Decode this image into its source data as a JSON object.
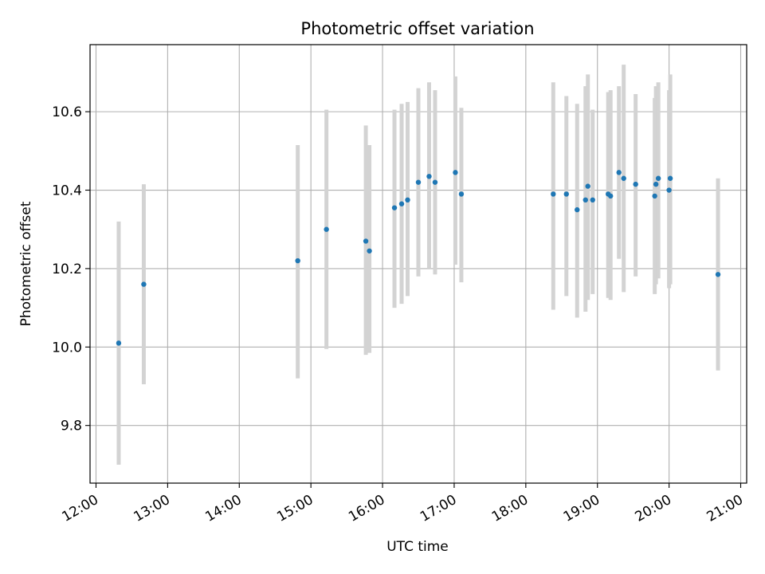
{
  "chart_data": {
    "type": "scatter",
    "title": "Photometric offset variation",
    "xlabel": "UTC time",
    "ylabel": "Photometric offset",
    "xlim": [
      "11:55",
      "21:05"
    ],
    "ylim": [
      9.653,
      10.771
    ],
    "x_ticks": [
      "12:00",
      "13:00",
      "14:00",
      "15:00",
      "16:00",
      "17:00",
      "18:00",
      "19:00",
      "20:00",
      "21:00"
    ],
    "y_ticks": [
      9.8,
      10.0,
      10.2,
      10.4,
      10.6
    ],
    "grid": true,
    "point_color": "#1f77b4",
    "errorbar_color": "#d3d3d3",
    "points": [
      {
        "t": "12:19",
        "y": 10.01,
        "lo": 9.7,
        "hi": 10.32
      },
      {
        "t": "12:40",
        "y": 10.16,
        "lo": 9.905,
        "hi": 10.415
      },
      {
        "t": "14:49",
        "y": 10.22,
        "lo": 9.92,
        "hi": 10.515
      },
      {
        "t": "15:13",
        "y": 10.3,
        "lo": 9.995,
        "hi": 10.605
      },
      {
        "t": "15:46",
        "y": 10.27,
        "lo": 9.98,
        "hi": 10.565
      },
      {
        "t": "15:49",
        "y": 10.245,
        "lo": 9.985,
        "hi": 10.515
      },
      {
        "t": "16:10",
        "y": 10.355,
        "lo": 10.1,
        "hi": 10.605
      },
      {
        "t": "16:16",
        "y": 10.365,
        "lo": 10.11,
        "hi": 10.62
      },
      {
        "t": "16:21",
        "y": 10.375,
        "lo": 10.13,
        "hi": 10.625
      },
      {
        "t": "16:30",
        "y": 10.42,
        "lo": 10.18,
        "hi": 10.66
      },
      {
        "t": "16:39",
        "y": 10.435,
        "lo": 10.2,
        "hi": 10.675
      },
      {
        "t": "16:44",
        "y": 10.42,
        "lo": 10.185,
        "hi": 10.655
      },
      {
        "t": "17:01",
        "y": 10.445,
        "lo": 10.21,
        "hi": 10.69
      },
      {
        "t": "17:06",
        "y": 10.39,
        "lo": 10.165,
        "hi": 10.61
      },
      {
        "t": "18:23",
        "y": 10.39,
        "lo": 10.095,
        "hi": 10.675
      },
      {
        "t": "18:34",
        "y": 10.39,
        "lo": 10.13,
        "hi": 10.64
      },
      {
        "t": "18:43",
        "y": 10.35,
        "lo": 10.075,
        "hi": 10.62
      },
      {
        "t": "18:50",
        "y": 10.375,
        "lo": 10.09,
        "hi": 10.665
      },
      {
        "t": "18:52",
        "y": 10.41,
        "lo": 10.12,
        "hi": 10.695
      },
      {
        "t": "18:56",
        "y": 10.375,
        "lo": 10.135,
        "hi": 10.605
      },
      {
        "t": "19:09",
        "y": 10.39,
        "lo": 10.125,
        "hi": 10.65
      },
      {
        "t": "19:11",
        "y": 10.385,
        "lo": 10.12,
        "hi": 10.655
      },
      {
        "t": "19:18",
        "y": 10.445,
        "lo": 10.225,
        "hi": 10.665
      },
      {
        "t": "19:22",
        "y": 10.43,
        "lo": 10.14,
        "hi": 10.72
      },
      {
        "t": "19:32",
        "y": 10.415,
        "lo": 10.18,
        "hi": 10.645
      },
      {
        "t": "19:48",
        "y": 10.385,
        "lo": 10.135,
        "hi": 10.635
      },
      {
        "t": "19:49",
        "y": 10.415,
        "lo": 10.16,
        "hi": 10.665
      },
      {
        "t": "19:51",
        "y": 10.43,
        "lo": 10.175,
        "hi": 10.675
      },
      {
        "t": "20:00",
        "y": 10.4,
        "lo": 10.15,
        "hi": 10.655
      },
      {
        "t": "20:01",
        "y": 10.43,
        "lo": 10.16,
        "hi": 10.695
      },
      {
        "t": "20:41",
        "y": 10.185,
        "lo": 9.94,
        "hi": 10.43
      }
    ]
  }
}
